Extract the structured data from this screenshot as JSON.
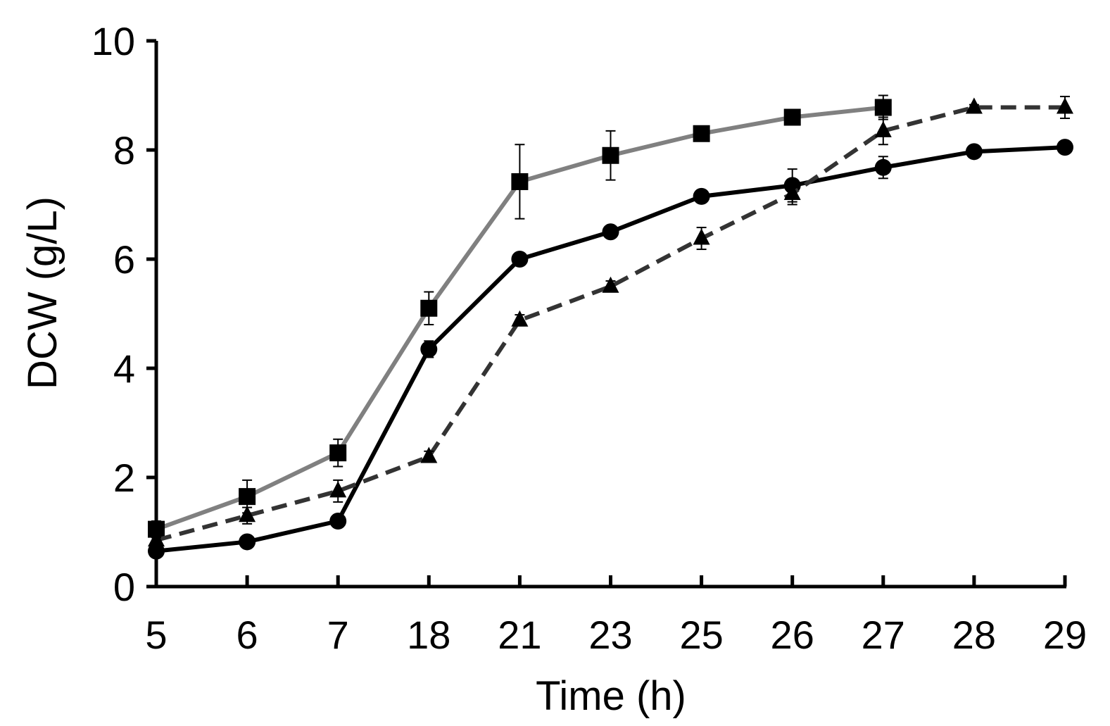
{
  "chart_data": {
    "type": "line",
    "title": "",
    "xlabel": "Time (h)",
    "ylabel": "DCW (g/L)",
    "categories": [
      "5",
      "6",
      "7",
      "18",
      "21",
      "23",
      "25",
      "26",
      "27",
      "28",
      "29"
    ],
    "ylim": [
      0,
      10
    ],
    "yticks": [
      "0",
      "2",
      "4",
      "6",
      "8",
      "10"
    ],
    "grid": false,
    "legend": "none",
    "series": [
      {
        "name": "squares",
        "marker": "square",
        "line_style": "solid",
        "color": "#808080",
        "marker_color": "#000000",
        "values": [
          1.05,
          1.65,
          2.45,
          5.1,
          7.42,
          7.9,
          8.3,
          8.6,
          8.78,
          null,
          null
        ],
        "errors": [
          0.15,
          0.3,
          0.25,
          0.3,
          0.68,
          0.45,
          0.05,
          0.05,
          0.22,
          null,
          null
        ]
      },
      {
        "name": "circles",
        "marker": "circle",
        "line_style": "solid",
        "color": "#000000",
        "marker_color": "#000000",
        "values": [
          0.65,
          0.82,
          1.2,
          4.35,
          6.0,
          6.5,
          7.15,
          7.35,
          7.68,
          7.97,
          8.05
        ],
        "errors": [
          0.05,
          0.05,
          0.05,
          0.15,
          0.05,
          0.05,
          0.05,
          0.3,
          0.2,
          0.1,
          0.08
        ]
      },
      {
        "name": "triangles",
        "marker": "triangle",
        "line_style": "dashed",
        "color": "#333333",
        "marker_color": "#000000",
        "values": [
          0.85,
          1.3,
          1.75,
          2.38,
          4.88,
          5.5,
          6.38,
          7.2,
          8.35,
          8.78,
          8.78
        ],
        "errors": [
          0.05,
          0.15,
          0.2,
          0.1,
          0.1,
          0.1,
          0.2,
          0.2,
          0.25,
          0.05,
          0.2
        ]
      }
    ]
  }
}
